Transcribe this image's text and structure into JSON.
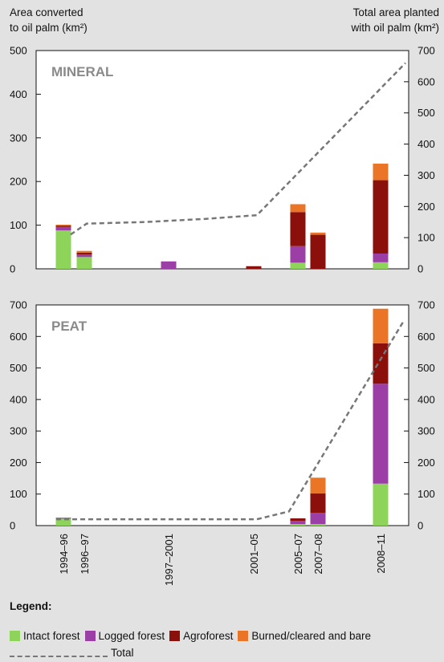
{
  "header": {
    "left_label_line1": "Area converted",
    "left_label_line2": "to oil palm (km²)",
    "right_label_line1": "Total area planted",
    "right_label_line2": "with oil palm (km²)"
  },
  "legend": {
    "title": "Legend:",
    "items": [
      {
        "label": "Intact forest",
        "color": "#8ed45b"
      },
      {
        "label": "Logged forest",
        "color": "#9b3fa6"
      },
      {
        "label": "Agroforest",
        "color": "#8b0f0a"
      },
      {
        "label": "Burned/cleared and bare",
        "color": "#ea7526"
      }
    ],
    "total_label": "Total",
    "total_color": "#777777"
  },
  "chart_data": [
    {
      "type": "bar",
      "stacked": true,
      "title": "MINERAL",
      "ylim": [
        0,
        500
      ],
      "yticks": [
        0,
        100,
        200,
        300,
        400,
        500
      ],
      "y2lim": [
        0,
        700
      ],
      "y2ticks": [
        0,
        100,
        200,
        300,
        400,
        500,
        600,
        700
      ],
      "ylabel": "Area converted to oil palm (km²)",
      "y2label": "Total area planted with oil palm (km²)",
      "bars": [
        {
          "period": "1994–96",
          "segments": [
            88,
            8,
            3,
            2
          ]
        },
        {
          "period": "1996–97",
          "segments": [
            27,
            6,
            4,
            4
          ]
        },
        {
          "period": "1997–2001",
          "segments": [
            0,
            17,
            0,
            0
          ]
        },
        {
          "period": "2001–05",
          "segments": [
            0,
            0,
            6,
            0
          ]
        },
        {
          "period": "2005–07",
          "segments": [
            14,
            38,
            78,
            18
          ]
        },
        {
          "period": "2007–08",
          "segments": [
            0,
            0,
            78,
            5
          ]
        },
        {
          "period": "2008–11",
          "segments": [
            15,
            20,
            168,
            38
          ]
        }
      ],
      "total_line": [
        {
          "x": "1994–96",
          "y": 110
        },
        {
          "x": "1996–97",
          "y": 145
        },
        {
          "x": "1997–2001",
          "y": 150
        },
        {
          "x": "1997–2001b",
          "y": 160
        },
        {
          "x": "2001–05",
          "y": 172
        },
        {
          "x": "2008–11",
          "y": 660
        }
      ]
    },
    {
      "type": "bar",
      "stacked": true,
      "title": "PEAT",
      "ylim": [
        0,
        700
      ],
      "yticks": [
        0,
        100,
        200,
        300,
        400,
        500,
        600,
        700
      ],
      "y2lim": [
        0,
        700
      ],
      "y2ticks": [
        0,
        100,
        200,
        300,
        400,
        500,
        600,
        700
      ],
      "bars": [
        {
          "period": "1994–96",
          "segments": [
            22,
            3,
            0,
            0
          ]
        },
        {
          "period": "1996–97",
          "segments": [
            0,
            0,
            0,
            0
          ]
        },
        {
          "period": "1997–2001",
          "segments": [
            0,
            0,
            0,
            0
          ]
        },
        {
          "period": "2001–05",
          "segments": [
            0,
            0,
            0,
            0
          ]
        },
        {
          "period": "2005–07",
          "segments": [
            5,
            10,
            8,
            0
          ]
        },
        {
          "period": "2007–08",
          "segments": [
            5,
            35,
            62,
            50
          ]
        },
        {
          "period": "2008–11",
          "segments": [
            133,
            317,
            128,
            110
          ]
        }
      ],
      "total_line": [
        {
          "x": "1994–96",
          "y": 20
        },
        {
          "x": "2001–05",
          "y": 20
        },
        {
          "x": "2005–07",
          "y": 45
        },
        {
          "x": "2008–11",
          "y": 650
        }
      ]
    }
  ],
  "x_axis": {
    "labels": [
      "1994–96",
      "1996–97",
      "1997–2001",
      "2001–05",
      "2005–07",
      "2007–08",
      "2008–11"
    ]
  }
}
